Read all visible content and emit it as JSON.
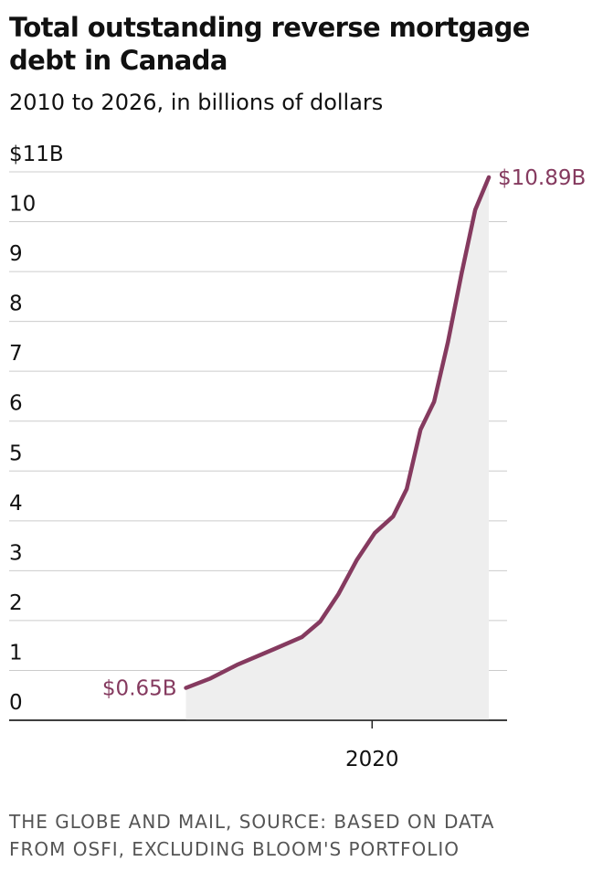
{
  "chart_data": {
    "type": "area-line",
    "title": "Total outstanding reverse mortgage debt in Canada",
    "subtitle": "2010 to 2026, in billions of dollars",
    "source": "THE GLOBE AND MAIL, SOURCE: BASED ON DATA FROM OSFI, EXCLUDING BLOOM'S PORTFOLIO",
    "x": [
      2010.0,
      2011.32,
      2012.79,
      2014.75,
      2016.23,
      2017.21,
      2018.19,
      2019.17,
      2020.15,
      2021.13,
      2021.86,
      2022.6,
      2023.33,
      2024.07,
      2024.8,
      2025.54,
      2026.27
    ],
    "values": [
      0.65,
      0.84,
      1.12,
      1.43,
      1.67,
      1.98,
      2.53,
      3.21,
      3.76,
      4.09,
      4.64,
      5.83,
      6.39,
      7.58,
      8.95,
      10.24,
      10.89
    ],
    "value_labels": [
      "$0.65B",
      null,
      null,
      null,
      null,
      null,
      null,
      null,
      null,
      null,
      null,
      null,
      null,
      null,
      null,
      null,
      "$10.89B"
    ],
    "color": "#853a5f",
    "area_color": "#eeeeee",
    "xlim": [
      2000.5,
      2027.25
    ],
    "xticks": [
      2020
    ],
    "ylim": [
      0,
      11
    ],
    "yticks": [
      0,
      1,
      2,
      3,
      4,
      5,
      6,
      7,
      8,
      9,
      10,
      {
        "value": 11,
        "label": "$11B"
      }
    ],
    "grid": true
  }
}
